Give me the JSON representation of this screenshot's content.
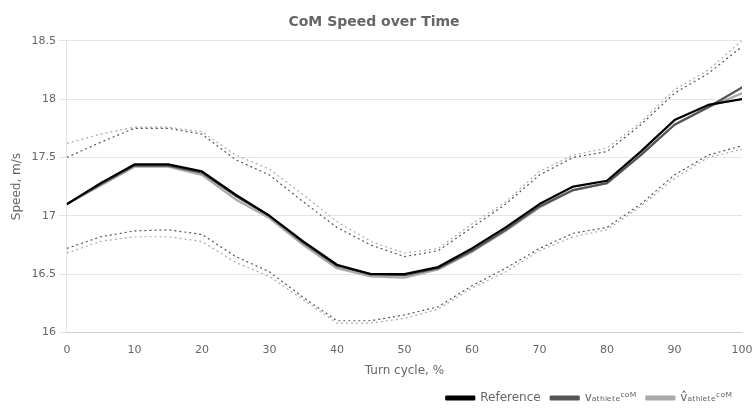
{
  "chart_data": {
    "type": "line",
    "title": "CoM Speed over Time",
    "x_label": "Turn cycle, %",
    "y_label": "Speed, m/s",
    "x": [
      0,
      5,
      10,
      15,
      20,
      25,
      30,
      35,
      40,
      45,
      50,
      55,
      60,
      65,
      70,
      75,
      80,
      85,
      90,
      95,
      100
    ],
    "xlim": [
      0,
      100
    ],
    "xticks": [
      0,
      10,
      20,
      30,
      40,
      50,
      60,
      70,
      80,
      90,
      100
    ],
    "ylim": [
      16,
      18.5
    ],
    "yticks": [
      16,
      16.5,
      17,
      17.5,
      18,
      18.5
    ],
    "grid": "y",
    "legend": "lower right",
    "series": [
      {
        "name": "Reference",
        "color": "#000000",
        "values": [
          17.1,
          17.28,
          17.44,
          17.44,
          17.38,
          17.18,
          17.0,
          16.78,
          16.58,
          16.5,
          16.5,
          16.56,
          16.72,
          16.9,
          17.1,
          17.25,
          17.3,
          17.55,
          17.82,
          17.95,
          18.0
        ]
      },
      {
        "name": "vₐₜₕₗₑₜₑᶜᵒᴹ",
        "color": "#555555",
        "values": [
          17.1,
          17.27,
          17.43,
          17.43,
          17.37,
          17.17,
          17.0,
          16.77,
          16.57,
          16.5,
          16.49,
          16.55,
          16.7,
          16.88,
          17.08,
          17.22,
          17.28,
          17.52,
          17.78,
          17.93,
          18.1
        ],
        "upper": [
          17.5,
          17.63,
          17.75,
          17.75,
          17.7,
          17.48,
          17.35,
          17.12,
          16.9,
          16.75,
          16.65,
          16.7,
          16.9,
          17.1,
          17.35,
          17.5,
          17.55,
          17.78,
          18.05,
          18.22,
          18.45
        ],
        "lower": [
          16.72,
          16.82,
          16.87,
          16.88,
          16.84,
          16.65,
          16.52,
          16.3,
          16.1,
          16.1,
          16.15,
          16.22,
          16.4,
          16.55,
          16.72,
          16.85,
          16.9,
          17.1,
          17.35,
          17.52,
          17.6
        ]
      },
      {
        "name": "v̂ₐₜₕₗₑₜₑᶜᵒᴹ",
        "color": "#aaaaaa",
        "values": [
          17.1,
          17.26,
          17.42,
          17.42,
          17.35,
          17.14,
          16.98,
          16.75,
          16.55,
          16.48,
          16.47,
          16.54,
          16.69,
          16.87,
          17.07,
          17.22,
          17.28,
          17.52,
          17.78,
          17.93,
          18.05
        ],
        "upper": [
          17.62,
          17.7,
          17.76,
          17.76,
          17.72,
          17.52,
          17.4,
          17.18,
          16.95,
          16.78,
          16.68,
          16.72,
          16.93,
          17.12,
          17.38,
          17.52,
          17.58,
          17.8,
          18.08,
          18.25,
          18.5
        ],
        "lower": [
          16.68,
          16.78,
          16.82,
          16.82,
          16.78,
          16.6,
          16.48,
          16.28,
          16.08,
          16.08,
          16.12,
          16.2,
          16.38,
          16.52,
          16.7,
          16.82,
          16.88,
          17.08,
          17.32,
          17.5,
          17.57
        ]
      }
    ]
  }
}
